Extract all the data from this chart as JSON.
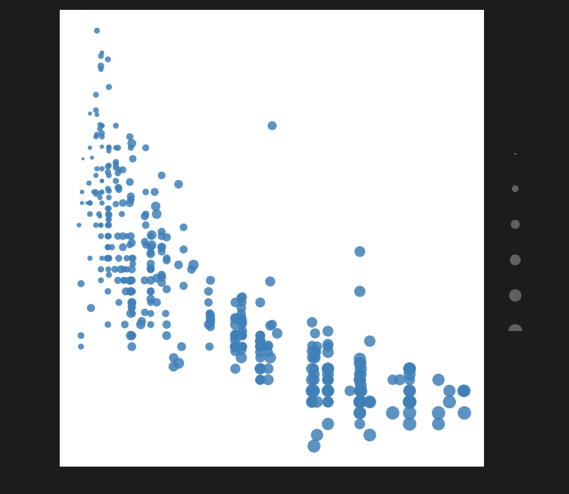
{
  "scatter_color": "#4080b8",
  "background_color": "#ffffff",
  "fig_background": "#1c1c1c",
  "marker_alpha": 0.85,
  "size_legend_color": "#606060",
  "n_legend": 6
}
